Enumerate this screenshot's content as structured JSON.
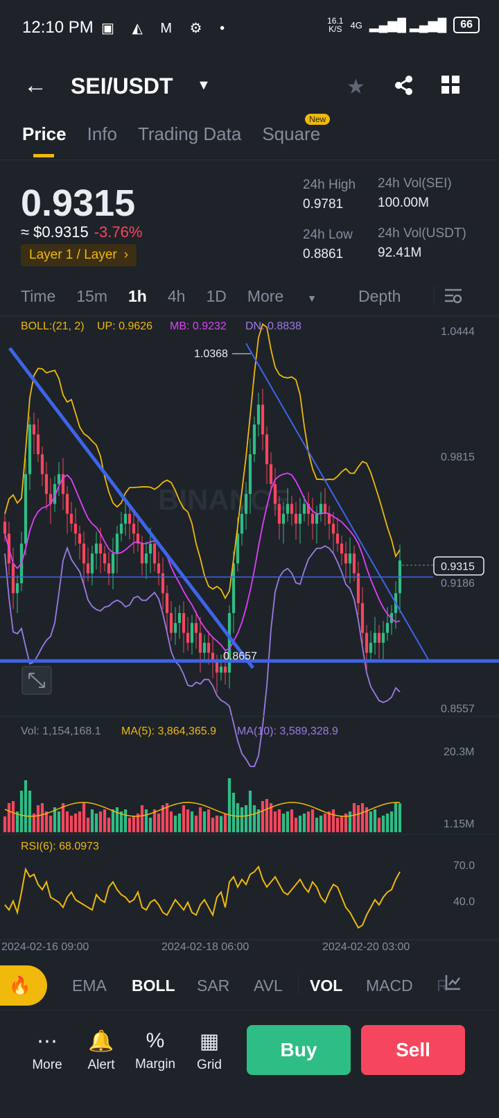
{
  "status": {
    "time": "12:10 PM",
    "speed": "16.1\nK/S",
    "network": "4G",
    "battery": "66"
  },
  "header": {
    "pair": "SEI/USDT"
  },
  "tabs": [
    {
      "label": "Price",
      "active": true
    },
    {
      "label": "Info"
    },
    {
      "label": "Trading Data"
    },
    {
      "label": "Square",
      "badge": "New"
    }
  ],
  "ticker": {
    "price": "0.9315",
    "fiat": "≈ $0.9315",
    "change": "-3.76%",
    "tag": "Layer 1 / Layer",
    "high_label": "24h High",
    "high": "0.9781",
    "low_label": "24h Low",
    "low": "0.8861",
    "vol_sei_label": "24h Vol(SEI)",
    "vol_sei": "100.00M",
    "vol_usdt_label": "24h Vol(USDT)",
    "vol_usdt": "92.41M"
  },
  "intervals": [
    "Time",
    "15m",
    "1h",
    "4h",
    "1D",
    "More",
    "Depth"
  ],
  "active_interval": "1h",
  "boll": {
    "label": "BOLL:(21, 2)",
    "up": "UP: 0.9626",
    "mb": "MB: 0.9232",
    "dn": "DN: 0.8838"
  },
  "price_axis": [
    "1.0444",
    "0.9815",
    "0.9186",
    "0.8557"
  ],
  "current_price_tag": "0.9315",
  "high_marker": "1.0368",
  "low_marker": "0.8657",
  "watermark": "BINANCE",
  "volume": {
    "vol": "Vol: 1,154,168.1",
    "ma5": "MA(5): 3,864,365.9",
    "ma10": "MA(10): 3,589,328.9",
    "axis_top": "20.3M",
    "axis_bottom": "1.15M"
  },
  "rsi": {
    "label": "RSI(6): 68.0973",
    "axis_top": "70.0",
    "axis_bottom": "40.0"
  },
  "time_axis": [
    "2024-02-16 09:00",
    "2024-02-18 06:00",
    "2024-02-20 03:00"
  ],
  "indicators": [
    "EMA",
    "BOLL",
    "SAR",
    "AVL",
    "VOL",
    "MACD",
    "R"
  ],
  "active_indicators": [
    "BOLL",
    "VOL"
  ],
  "bottom_nav": [
    {
      "label": "More",
      "icon": "more-icon"
    },
    {
      "label": "Alert",
      "icon": "bell-icon"
    },
    {
      "label": "Margin",
      "icon": "margin-icon"
    },
    {
      "label": "Grid",
      "icon": "grid-bot-icon"
    }
  ],
  "buy_label": "Buy",
  "sell_label": "Sell",
  "colors": {
    "up": "#2ebd85",
    "down": "#f6465d",
    "accent": "#f0b90b",
    "boll_up": "#f0b90b",
    "boll_mb": "#e040fb",
    "boll_dn": "#9c7be8",
    "bg": "#1e2329"
  },
  "chart_data": {
    "type": "candlestick",
    "price_range": [
      0.8557,
      1.0444
    ],
    "closes": [
      0.945,
      0.93,
      0.915,
      0.92,
      0.94,
      0.975,
      1.0,
      0.995,
      0.985,
      0.975,
      0.965,
      0.96,
      0.97,
      0.975,
      0.965,
      0.955,
      0.95,
      0.945,
      0.94,
      0.93,
      0.925,
      0.935,
      0.94,
      0.935,
      0.93,
      0.925,
      0.935,
      0.945,
      0.95,
      0.955,
      0.95,
      0.945,
      0.94,
      0.93,
      0.935,
      0.94,
      0.93,
      0.925,
      0.915,
      0.905,
      0.895,
      0.9,
      0.905,
      0.895,
      0.89,
      0.9,
      0.895,
      0.885,
      0.89,
      0.885,
      0.88,
      0.875,
      0.878,
      0.875,
      0.905,
      0.93,
      0.945,
      0.955,
      0.965,
      0.985,
      1.0,
      1.01,
      0.995,
      0.98,
      0.97,
      0.96,
      0.95,
      0.955,
      0.96,
      0.955,
      0.95,
      0.955,
      0.96,
      0.955,
      0.95,
      0.955,
      0.96,
      0.955,
      0.95,
      0.945,
      0.94,
      0.935,
      0.93,
      0.935,
      0.925,
      0.91,
      0.895,
      0.885,
      0.89,
      0.895,
      0.89,
      0.895,
      0.9,
      0.905,
      0.915,
      0.9315
    ],
    "volume_range": [
      1.15,
      20.3
    ],
    "rsi_range": [
      20,
      80
    ],
    "rsi": [
      42,
      38,
      45,
      36,
      52,
      70,
      64,
      66,
      58,
      54,
      60,
      48,
      46,
      44,
      40,
      48,
      52,
      46,
      44,
      42,
      40,
      38,
      50,
      46,
      44,
      56,
      60,
      54,
      50,
      48,
      44,
      46,
      52,
      40,
      38,
      44,
      46,
      42,
      36,
      34,
      40,
      46,
      42,
      38,
      44,
      36,
      34,
      42,
      46,
      40,
      34,
      48,
      52,
      40,
      60,
      64,
      56,
      62,
      58,
      66,
      68,
      72,
      62,
      56,
      60,
      64,
      58,
      52,
      50,
      54,
      58,
      62,
      56,
      52,
      60,
      56,
      48,
      44,
      52,
      58,
      56,
      48,
      40,
      36,
      30,
      24,
      26,
      34,
      40,
      46,
      42,
      48,
      52,
      54,
      62,
      68
    ]
  }
}
